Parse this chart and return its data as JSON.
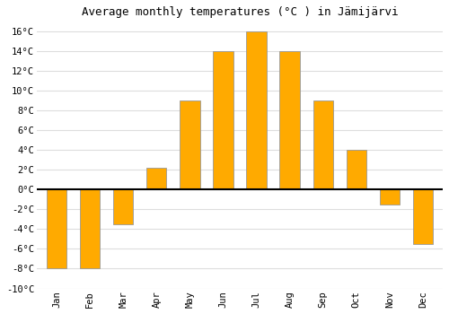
{
  "title": "Average monthly temperatures (°C ) in Jämijärvi",
  "months": [
    "Jan",
    "Feb",
    "Mar",
    "Apr",
    "May",
    "Jun",
    "Jul",
    "Aug",
    "Sep",
    "Oct",
    "Nov",
    "Dec"
  ],
  "values": [
    -8,
    -8,
    -3.5,
    2.2,
    9,
    14,
    16,
    14,
    9,
    4,
    -1.5,
    -5.5
  ],
  "bar_color_top": "#FFAA00",
  "bar_color_bottom": "#FFB830",
  "bar_edge_color": "#999999",
  "background_color": "#ffffff",
  "plot_bg_color": "#ffffff",
  "grid_color": "#dddddd",
  "ylim": [
    -10,
    17
  ],
  "yticks": [
    -10,
    -8,
    -6,
    -4,
    -2,
    0,
    2,
    4,
    6,
    8,
    10,
    12,
    14,
    16
  ],
  "title_fontsize": 9,
  "tick_fontsize": 7.5,
  "bar_width": 0.6
}
